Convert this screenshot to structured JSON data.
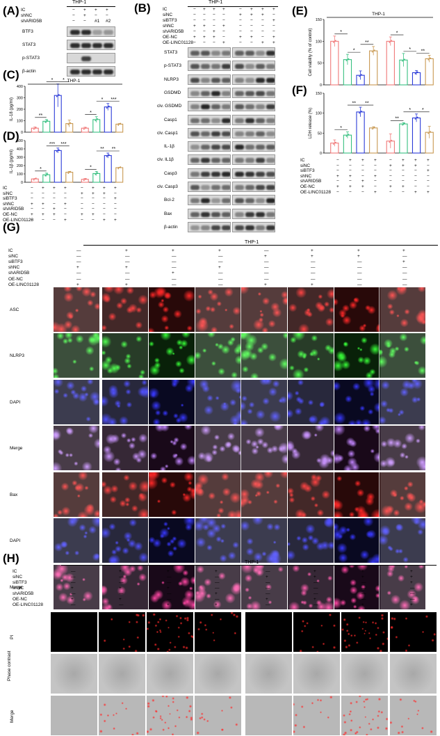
{
  "panels": {
    "A": "(A)",
    "B": "(B)",
    "C": "(C)",
    "D": "(D)",
    "E": "(E)",
    "F": "(F)",
    "G": "(G)",
    "H": "(H)"
  },
  "cell_line": "THP-1",
  "panelA": {
    "cond_rows": [
      {
        "label": "IC",
        "marks": [
          "−",
          "+",
          "+",
          "+"
        ]
      },
      {
        "label": "shNC",
        "marks": [
          "−",
          "+",
          "−",
          "−"
        ]
      },
      {
        "label": "shARID5B",
        "marks": [
          "−",
          "−",
          "#1",
          "#2"
        ]
      }
    ],
    "blots": [
      "BTF3",
      "STAT3",
      "p-STAT3",
      "β-actin"
    ]
  },
  "panelB": {
    "cond_rows": [
      {
        "label": "IC",
        "marks": [
          "−",
          "+",
          "+",
          "+",
          "−",
          "+",
          "+",
          "+"
        ]
      },
      {
        "label": "siNC",
        "marks": [
          "−",
          "−",
          "−",
          "−",
          "+",
          "+",
          "+",
          "−"
        ]
      },
      {
        "label": "siBTF3",
        "marks": [
          "−",
          "−",
          "−",
          "−",
          "−",
          "−",
          "−",
          "+"
        ]
      },
      {
        "label": "shNC",
        "marks": [
          "+",
          "+",
          "−",
          "+",
          "−",
          "−",
          "−",
          "−"
        ]
      },
      {
        "label": "shARID5B",
        "marks": [
          "−",
          "−",
          "+",
          "−",
          "−",
          "−",
          "−",
          "−"
        ]
      },
      {
        "label": "OE-NC",
        "marks": [
          "+",
          "+",
          "+",
          "−",
          "+",
          "+",
          "−",
          "+"
        ]
      },
      {
        "label": "OE-LINC01128",
        "marks": [
          "−",
          "−",
          "−",
          "+",
          "−",
          "−",
          "+",
          "+"
        ]
      }
    ],
    "blots": [
      "STAT3",
      "p-STAT3",
      "NLRP3",
      "GSDMD",
      "clv. GSDMD",
      "Casp1",
      "clv. Casp1",
      "IL-1β",
      "clv. IL1β",
      "Casp3",
      "clv. Casp3",
      "Bcl-2",
      "Bax",
      "β-actin"
    ]
  },
  "panelC": {
    "ylabel": "IL-18 (pg/ml)",
    "title": "THP-1"
  },
  "panelD": {
    "ylabel": "IL-1β (pg/ml)"
  },
  "panelE": {
    "ylabel": "Cell viability (% of control)",
    "title": "THP-1"
  },
  "panelF": {
    "ylabel": "LDH release (%)"
  },
  "cdf_conditions": [
    {
      "label": "IC",
      "marks": [
        "−",
        "+",
        "+",
        "+",
        "−",
        "+",
        "+",
        "+"
      ]
    },
    {
      "label": "siNC",
      "marks": [
        "−",
        "−",
        "−",
        "−",
        "+",
        "+",
        "+",
        "−"
      ]
    },
    {
      "label": "siBTF3",
      "marks": [
        "−",
        "−",
        "−",
        "−",
        "−",
        "−",
        "−",
        "+"
      ]
    },
    {
      "label": "shNC",
      "marks": [
        "+",
        "+",
        "−",
        "+",
        "−",
        "−",
        "−",
        "−"
      ]
    },
    {
      "label": "shARID5B",
      "marks": [
        "−",
        "−",
        "+",
        "−",
        "−",
        "−",
        "−",
        "−"
      ]
    },
    {
      "label": "OE-NC",
      "marks": [
        "+",
        "+",
        "+",
        "−",
        "+",
        "+",
        "−",
        "−"
      ]
    },
    {
      "label": "OE-LINC01128",
      "marks": [
        "−",
        "−",
        "−",
        "+",
        "−",
        "−",
        "+",
        "+"
      ]
    }
  ],
  "chart_data": [
    {
      "type": "bar",
      "panel": "C",
      "ylabel": "IL-18 (pg/ml)",
      "ylim": [
        0,
        400
      ],
      "yticks": [
        0,
        100,
        200,
        300,
        400
      ],
      "values": [
        35,
        95,
        320,
        75,
        35,
        110,
        220,
        70
      ],
      "errors": [
        10,
        15,
        100,
        30,
        8,
        25,
        30,
        5
      ],
      "sig": [
        {
          "from": 0,
          "to": 1,
          "label": "**"
        },
        {
          "from": 1,
          "to": 2,
          "label": "*"
        },
        {
          "from": 2,
          "to": 3,
          "label": "*"
        },
        {
          "from": 4,
          "to": 5,
          "label": "*"
        },
        {
          "from": 5,
          "to": 6,
          "label": "*"
        },
        {
          "from": 6,
          "to": 7,
          "label": "***"
        }
      ]
    },
    {
      "type": "bar",
      "panel": "D",
      "ylabel": "IL-1β (pg/ml)",
      "ylim": [
        0,
        500
      ],
      "yticks": [
        0,
        100,
        200,
        300,
        400,
        500
      ],
      "values": [
        40,
        90,
        380,
        120,
        35,
        105,
        320,
        175
      ],
      "errors": [
        5,
        20,
        30,
        10,
        10,
        25,
        30,
        5
      ],
      "sig": [
        {
          "from": 0,
          "to": 1,
          "label": "*"
        },
        {
          "from": 1,
          "to": 2,
          "label": "***"
        },
        {
          "from": 2,
          "to": 3,
          "label": "***"
        },
        {
          "from": 4,
          "to": 5,
          "label": "*"
        },
        {
          "from": 5,
          "to": 6,
          "label": "**"
        },
        {
          "from": 6,
          "to": 7,
          "label": "**"
        }
      ]
    },
    {
      "type": "bar",
      "panel": "E",
      "ylabel": "Cell viability (% of control)",
      "ylim": [
        0,
        150
      ],
      "yticks": [
        0,
        50,
        100,
        150
      ],
      "values": [
        100,
        58,
        22,
        78,
        100,
        57,
        28,
        60
      ],
      "errors": [
        12,
        12,
        10,
        10,
        10,
        15,
        5,
        8
      ],
      "sig": [
        {
          "from": 0,
          "to": 1,
          "label": "*"
        },
        {
          "from": 1,
          "to": 2,
          "label": "*"
        },
        {
          "from": 2,
          "to": 3,
          "label": "**"
        },
        {
          "from": 4,
          "to": 5,
          "label": "*"
        },
        {
          "from": 5,
          "to": 6,
          "label": "*"
        },
        {
          "from": 6,
          "to": 7,
          "label": "**"
        }
      ]
    },
    {
      "type": "bar",
      "panel": "F",
      "ylabel": "LDH release (%)",
      "ylim": [
        0,
        150
      ],
      "yticks": [
        0,
        50,
        100,
        150
      ],
      "values": [
        25,
        45,
        103,
        63,
        30,
        73,
        88,
        52
      ],
      "errors": [
        8,
        8,
        12,
        3,
        18,
        3,
        10,
        15
      ],
      "sig": [
        {
          "from": 0,
          "to": 1,
          "label": "*"
        },
        {
          "from": 1,
          "to": 2,
          "label": "**"
        },
        {
          "from": 2,
          "to": 3,
          "label": "**"
        },
        {
          "from": 4,
          "to": 5,
          "label": "**"
        },
        {
          "from": 5,
          "to": 6,
          "label": "*"
        },
        {
          "from": 6,
          "to": 7,
          "label": "*"
        }
      ]
    }
  ],
  "bar_colors": [
    "#f07878",
    "#36c080",
    "#2a3ad8",
    "#c89850",
    "#f07878",
    "#36c080",
    "#2a3ad8",
    "#c89850"
  ],
  "panelG": {
    "cond_rows": [
      {
        "label": "IC",
        "marks": [
          "—",
          "+",
          "+",
          "+",
          "—",
          "+",
          "+",
          "+"
        ]
      },
      {
        "label": "siNC",
        "marks": [
          "—",
          "—",
          "—",
          "—",
          "+",
          "+",
          "+",
          "—"
        ]
      },
      {
        "label": "siBTF3",
        "marks": [
          "—",
          "—",
          "—",
          "—",
          "—",
          "—",
          "—",
          "+"
        ]
      },
      {
        "label": "shNC",
        "marks": [
          "+",
          "+",
          "—",
          "+",
          "—",
          "—",
          "—",
          "—"
        ]
      },
      {
        "label": "shARID5B",
        "marks": [
          "—",
          "—",
          "+",
          "—",
          "—",
          "—",
          "—",
          "—"
        ]
      },
      {
        "label": "OE-NC",
        "marks": [
          "—",
          "—",
          "—",
          "—",
          "—",
          "—",
          "—",
          "—"
        ]
      },
      {
        "label": "OE-LINC01128",
        "marks": [
          "+",
          "+",
          "—",
          "—",
          "+",
          "+",
          "—",
          "—"
        ]
      }
    ],
    "rows": [
      {
        "label": "ASC",
        "color": "red"
      },
      {
        "label": "NLRP3",
        "color": "green"
      },
      {
        "label": "DAPI",
        "color": "blue"
      },
      {
        "label": "Merge",
        "color": "merge1"
      },
      {
        "label": "Bax",
        "color": "red"
      },
      {
        "label": "DAPI",
        "color": "blue"
      },
      {
        "label": "Merge",
        "color": "merge2"
      }
    ]
  },
  "panelH": {
    "cond_rows": [
      {
        "label": "IC",
        "marks": [
          "—",
          "+",
          "+",
          "+",
          "—",
          "+",
          "+",
          "+"
        ]
      },
      {
        "label": "siNC",
        "marks": [
          "—",
          "—",
          "—",
          "—",
          "+",
          "+",
          "+",
          "+"
        ]
      },
      {
        "label": "siBTF3",
        "marks": [
          "—",
          "—",
          "—",
          "—",
          "—",
          "—",
          "—",
          "+"
        ]
      },
      {
        "label": "shNC",
        "marks": [
          "+",
          "+",
          "+",
          "—",
          "—",
          "—",
          "—",
          "—"
        ]
      },
      {
        "label": "shARID5B",
        "marks": [
          "—",
          "—",
          "—",
          "+",
          "—",
          "—",
          "—",
          "—"
        ]
      },
      {
        "label": "OE-NC",
        "marks": [
          "+",
          "+",
          "—",
          "—",
          "+",
          "+",
          "—",
          "—"
        ]
      },
      {
        "label": "OE-LINC01128",
        "marks": [
          "—",
          "—",
          "+",
          "+",
          "—",
          "—",
          "+",
          "+"
        ]
      }
    ],
    "rows": [
      {
        "label": "PI",
        "color": "pi"
      },
      {
        "label": "Phase contrast",
        "color": "phase"
      },
      {
        "label": "Merge",
        "color": "phasemerge"
      }
    ]
  }
}
